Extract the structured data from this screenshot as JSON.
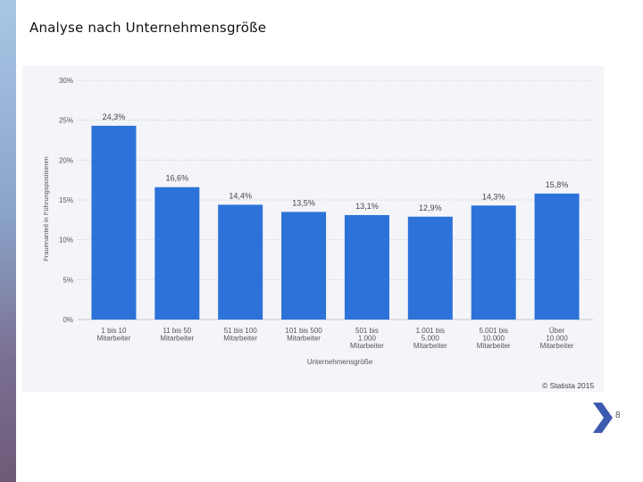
{
  "slide": {
    "title": "Analyse nach Unternehmensgröße",
    "page_number": "8",
    "credit": "© Statista 2015"
  },
  "colors": {
    "bar": "#2c72d8",
    "grid": "#c4c7cc",
    "axis_text": "#555555",
    "label_text": "#444444"
  },
  "chart_data": {
    "type": "bar",
    "xlabel": "Unternehmensgröße",
    "ylabel": "Frauenanteil in Führungspositionen",
    "ylim": [
      0,
      30
    ],
    "yticks": [
      {
        "value": 0,
        "label": "0%"
      },
      {
        "value": 5,
        "label": "5%"
      },
      {
        "value": 10,
        "label": "10%"
      },
      {
        "value": 15,
        "label": "15%"
      },
      {
        "value": 20,
        "label": "20%"
      },
      {
        "value": 25,
        "label": "25%"
      },
      {
        "value": 30,
        "label": "30%"
      }
    ],
    "grid": true,
    "categories": [
      [
        "1 bis 10",
        "Mitarbeiter"
      ],
      [
        "11 bis 50",
        "Mitarbeiter"
      ],
      [
        "51 bis 100",
        "Mitarbeiter"
      ],
      [
        "101 bis 500",
        "Mitarbeiter"
      ],
      [
        "501 bis",
        "1.000",
        "Mitarbeiter"
      ],
      [
        "1.001 bis",
        "5.000",
        "Mitarbeiter"
      ],
      [
        "5.001 bis",
        "10.000",
        "Mitarbeiter"
      ],
      [
        "Über",
        "10.000",
        "Mitarbeiter"
      ]
    ],
    "values": [
      24.3,
      16.6,
      14.4,
      13.5,
      13.1,
      12.9,
      14.3,
      15.8
    ],
    "value_labels": [
      "24,3%",
      "16,6%",
      "14,4%",
      "13,5%",
      "13,1%",
      "12,9%",
      "14,3%",
      "15,8%"
    ]
  }
}
